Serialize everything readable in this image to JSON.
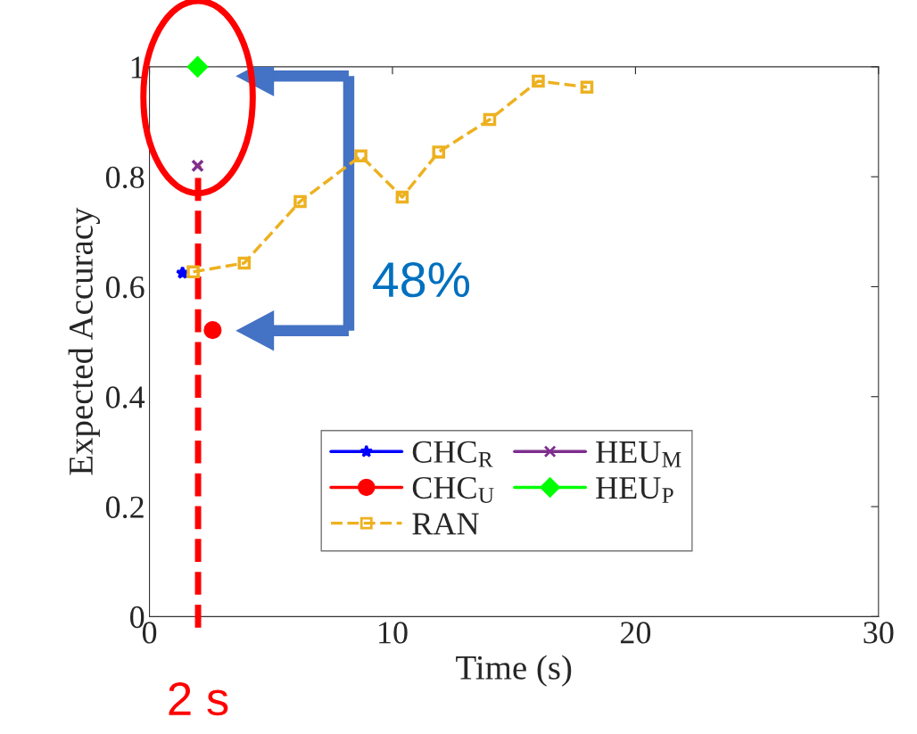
{
  "chart_data": {
    "type": "line",
    "xlabel": "Time (s)",
    "ylabel": "Expected Accuracy",
    "xlim": [
      0,
      30
    ],
    "xticks": [
      0,
      10,
      20,
      30
    ],
    "ylim": [
      0,
      1
    ],
    "yticks": [
      0,
      0.2,
      0.4,
      0.6,
      0.8,
      1
    ],
    "grid": false,
    "legend": "bottom",
    "series": [
      {
        "name": "CHC$_{R}$",
        "color": "#0000ff",
        "marker": "star",
        "x": [
          1.36
        ],
        "values": [
          0.625
        ]
      },
      {
        "name": "CHC$_{U}$",
        "color": "#ff0000",
        "marker": "circle",
        "x": [
          2.6
        ],
        "values": [
          0.521
        ]
      },
      {
        "name": "RAN",
        "color": "#edb120",
        "marker": "square",
        "line_style": "dashed",
        "x": [
          1.8,
          3.9,
          6.2,
          8.7,
          10.4,
          11.9,
          14.0,
          16.0,
          18.0
        ],
        "values": [
          0.627,
          0.643,
          0.755,
          0.838,
          0.763,
          0.845,
          0.904,
          0.974,
          0.963
        ]
      },
      {
        "name": "HEU$_{M}$",
        "color": "#7e2f8e",
        "marker": "cross",
        "x": [
          1.98
        ],
        "values": [
          0.82
        ]
      },
      {
        "name": "HEU$_{P}$",
        "color": "#00ff00",
        "marker": "diamond",
        "x": [
          1.98
        ],
        "values": [
          1.0
        ]
      }
    ],
    "ref_lines": [
      {
        "axis": "x",
        "value": 2,
        "label": "2 s",
        "color": "#ff0000",
        "line_style": "dashed"
      }
    ],
    "annotations": [
      "48%"
    ]
  }
}
